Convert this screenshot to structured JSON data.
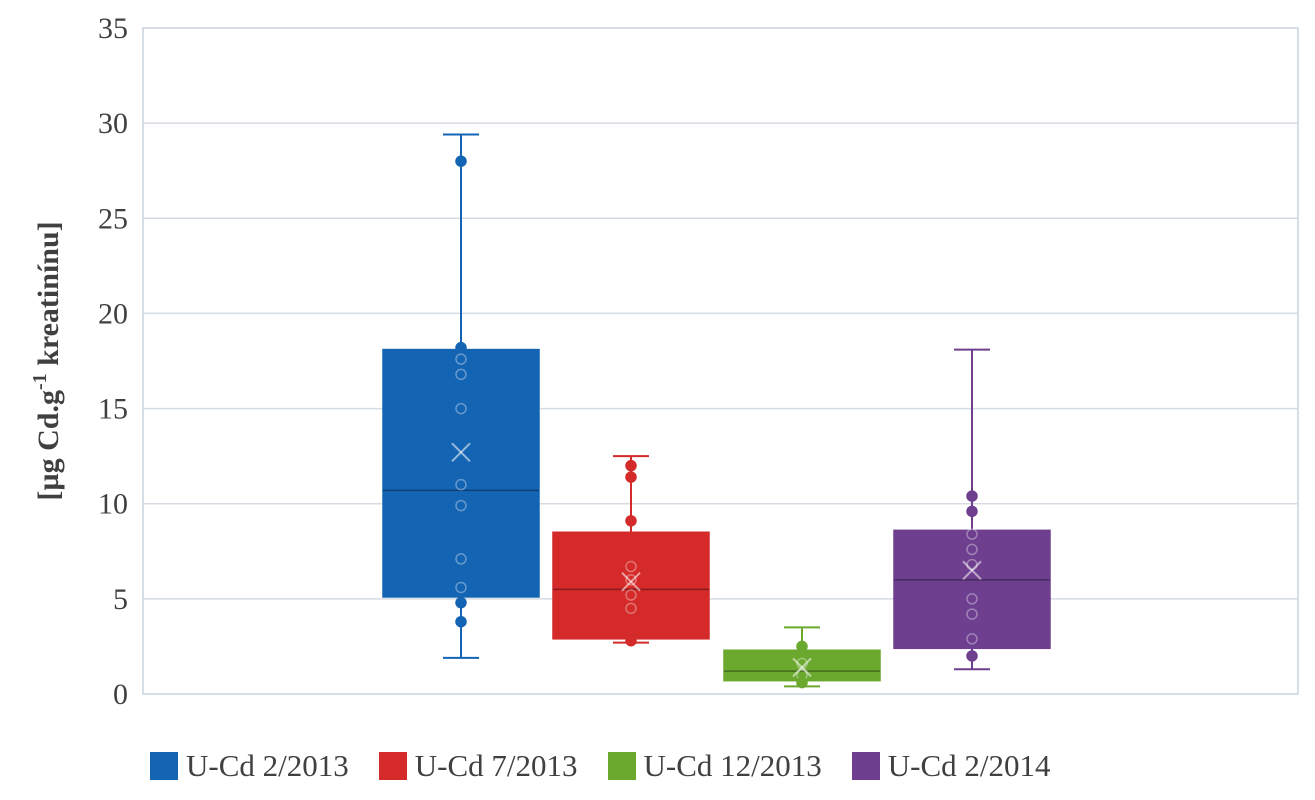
{
  "chart_data": {
    "type": "box",
    "ylabel_prefix": "[µg Cd.g",
    "ylabel_sup": "-1",
    "ylabel_suffix": " kreatinínu]",
    "ylim": [
      0,
      35
    ],
    "yticks": [
      0,
      5,
      10,
      15,
      20,
      25,
      30,
      35
    ],
    "grid": true,
    "legend_position": "bottom",
    "series": [
      {
        "name": "U-Cd 2/2013",
        "color": "#1464b4",
        "min": 1.9,
        "q1": 5.1,
        "median": 10.7,
        "q3": 18.1,
        "max": 29.4,
        "mean": 12.7,
        "points": [
          28.0,
          18.2,
          17.6,
          16.8,
          15.0,
          11.0,
          9.9,
          7.1,
          5.6,
          4.8,
          3.8
        ]
      },
      {
        "name": "U-Cd 7/2013",
        "color": "#d42a2a",
        "min": 2.7,
        "q1": 2.9,
        "median": 5.5,
        "q3": 8.5,
        "max": 12.5,
        "mean": 5.9,
        "points": [
          12.0,
          11.4,
          9.1,
          6.7,
          6.0,
          5.2,
          4.5,
          2.8
        ]
      },
      {
        "name": "U-Cd 12/2013",
        "color": "#6aa82e",
        "min": 0.4,
        "q1": 0.7,
        "median": 1.2,
        "q3": 2.3,
        "max": 3.5,
        "mean": 1.4,
        "points": [
          2.5,
          1.6,
          1.0,
          0.6
        ]
      },
      {
        "name": "U-Cd 2/2014",
        "color": "#6e3f8f",
        "min": 1.3,
        "q1": 2.4,
        "median": 6.0,
        "q3": 8.6,
        "max": 18.1,
        "mean": 6.5,
        "points": [
          10.4,
          9.6,
          8.4,
          7.6,
          6.8,
          5.0,
          4.2,
          2.9,
          2.0
        ]
      }
    ]
  }
}
